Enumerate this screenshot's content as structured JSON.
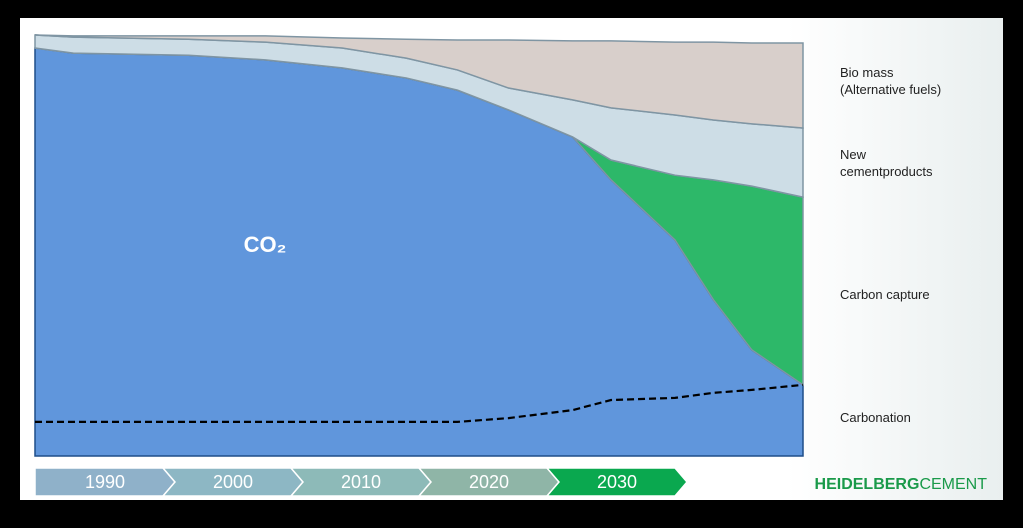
{
  "chart_data": {
    "type": "stacked-area",
    "annotation": "CO₂",
    "x": [
      1984,
      1987,
      1996,
      2002,
      2008,
      2013,
      2017,
      2021,
      2026,
      2029,
      2034,
      2037,
      2040,
      2044
    ],
    "xlim": [
      1984,
      2044
    ],
    "ylim": [
      0,
      100
    ],
    "series": [
      {
        "name": "Carbonation",
        "color": "#000000",
        "kind": "dashed-line",
        "values": [
          8.1,
          8.1,
          8.1,
          8.1,
          8.1,
          8.1,
          8.1,
          9.0,
          10.9,
          13.3,
          13.8,
          15.0,
          15.7,
          16.9
        ]
      },
      {
        "name": "Carbon capture",
        "color": "#2db869",
        "kind": "area",
        "values": [
          0,
          0,
          0,
          0,
          0,
          0,
          0,
          0,
          0,
          4.7,
          15.4,
          28.5,
          38.9,
          44.6
        ]
      },
      {
        "name": "New\ncementproducts",
        "color": "#cddde6",
        "kind": "area",
        "values": [
          3.1,
          3.8,
          3.8,
          4.2,
          4.7,
          4.7,
          4.8,
          5.2,
          8.8,
          12.4,
          14.3,
          14.2,
          14.8,
          16.4
        ]
      },
      {
        "name": "Bio mass\n(Alternative fuels)",
        "color": "#d8cfcb",
        "kind": "area",
        "values": [
          0,
          0.3,
          0.8,
          1.5,
          2.4,
          4.5,
          7.1,
          11.4,
          14.0,
          15.9,
          17.3,
          18.5,
          19.2,
          20.2
        ]
      }
    ],
    "base": {
      "name": "CO₂",
      "color": "#6096dc",
      "values": [
        96.9,
        95.7,
        95.2,
        94.1,
        92.2,
        89.8,
        86.9,
        82.2,
        75.8,
        65.6,
        51.3,
        37.1,
        25.2,
        16.9
      ]
    }
  },
  "timeline": {
    "labels": [
      "1990",
      "2000",
      "2010",
      "2020",
      "2030"
    ],
    "active": 4
  },
  "brand": {
    "bold": "HEIDELBERG",
    "light": "CEMENT"
  }
}
